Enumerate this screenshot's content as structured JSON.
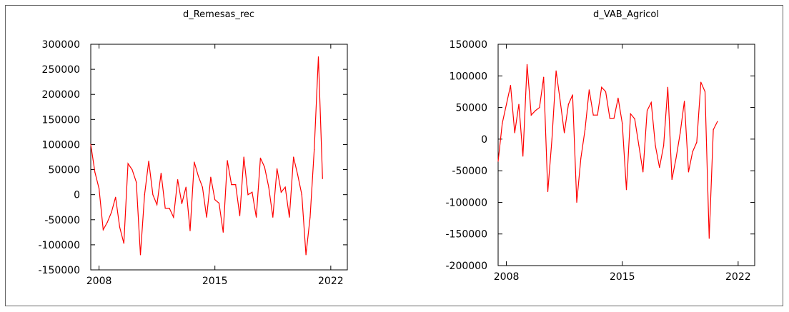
{
  "charts": [
    {
      "type": "line",
      "title": "d_Remesas_rec",
      "xlabel": "",
      "ylabel": "",
      "xlim": [
        2007.5,
        2023
      ],
      "ylim": [
        -150000,
        300000
      ],
      "x_ticks": [
        2008,
        2015,
        2022
      ],
      "y_ticks": [
        -150000,
        -100000,
        -50000,
        0,
        50000,
        100000,
        150000,
        200000,
        250000,
        300000
      ],
      "grid": false,
      "color": "#ff0000",
      "x_start": 2007.5,
      "x_step": 0.25,
      "values": [
        100000,
        45000,
        12000,
        -70000,
        -55000,
        -35000,
        -5000,
        -65000,
        -97000,
        62000,
        50000,
        25000,
        -120000,
        0,
        67000,
        0,
        -20000,
        43000,
        -27000,
        -27000,
        -45000,
        30000,
        -18000,
        15000,
        -72000,
        65000,
        37000,
        15000,
        -45000,
        35000,
        -10000,
        -17000,
        -75000,
        68000,
        20000,
        20000,
        -42000,
        75000,
        0,
        5000,
        -45000,
        73000,
        55000,
        15000,
        -45000,
        52000,
        5000,
        15000,
        -45000,
        75000,
        40000,
        0,
        -120000,
        -45000,
        90000,
        275000,
        32000
      ]
    },
    {
      "type": "line",
      "title": "d_VAB_Agricol",
      "xlabel": "",
      "ylabel": "",
      "xlim": [
        2007.5,
        2023
      ],
      "ylim": [
        -200000,
        150000
      ],
      "x_ticks": [
        2008,
        2015,
        2022
      ],
      "y_ticks": [
        -200000,
        -150000,
        -100000,
        -50000,
        0,
        50000,
        100000,
        150000
      ],
      "grid": false,
      "color": "#ff0000",
      "x_start": 2007.5,
      "x_step": 0.25,
      "values": [
        -35000,
        25000,
        55000,
        85000,
        10000,
        55000,
        -27000,
        118000,
        38000,
        45000,
        50000,
        98000,
        -83000,
        0,
        108000,
        60000,
        10000,
        55000,
        70000,
        -100000,
        -30000,
        15000,
        78000,
        38000,
        38000,
        82000,
        75000,
        33000,
        33000,
        65000,
        25000,
        -80000,
        40000,
        32000,
        -10000,
        -52000,
        45000,
        58000,
        -10000,
        -45000,
        -10000,
        82000,
        -64000,
        -30000,
        10000,
        60000,
        -52000,
        -20000,
        -5000,
        90000,
        75000,
        -157000,
        15000,
        28000
      ]
    }
  ]
}
